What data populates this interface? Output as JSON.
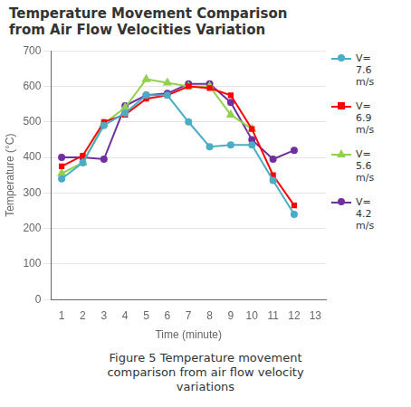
{
  "chart_data": {
    "type": "line",
    "title": "Temperature Movement Comparison\nfrom Air Flow Velocities Variation",
    "x_label": "Time (minute)",
    "y_label": "Temperature (°C)",
    "caption": "Figure 5 Temperature movement\ncomparison from air flow velocity\nvariations",
    "x": [
      1,
      2,
      3,
      4,
      5,
      6,
      7,
      8,
      9,
      10,
      11,
      12,
      13
    ],
    "series": [
      {
        "name": "V=\n7.6\nm/s",
        "color": "#4BACC6",
        "marker": "circle",
        "values": [
          340,
          385,
          490,
          525,
          575,
          575,
          500,
          430,
          435,
          435,
          335,
          240,
          null
        ]
      },
      {
        "name": "V=\n6.9\nm/s",
        "color": "#FF0000",
        "marker": "square",
        "values": [
          375,
          405,
          500,
          520,
          565,
          575,
          600,
          595,
          575,
          480,
          350,
          265,
          null
        ]
      },
      {
        "name": "V=\n5.6\nm/s",
        "color": "#92D050",
        "marker": "triangle",
        "values": [
          355,
          385,
          495,
          540,
          620,
          610,
          600,
          600,
          520,
          480,
          null,
          null,
          null
        ]
      },
      {
        "name": "V=\n4.2\nm/s",
        "color": "#7030A0",
        "marker": "circle",
        "values": [
          400,
          400,
          395,
          545,
          575,
          580,
          607,
          607,
          555,
          450,
          395,
          420,
          null
        ]
      }
    ],
    "xlim": [
      0.5,
      13.5
    ],
    "xticks": [
      1,
      2,
      3,
      4,
      5,
      6,
      7,
      8,
      9,
      10,
      11,
      12,
      13
    ],
    "ylim": [
      0,
      700
    ],
    "yticks": [
      0,
      100,
      200,
      300,
      400,
      500,
      600,
      700
    ],
    "grid": "y",
    "legend": "right"
  }
}
